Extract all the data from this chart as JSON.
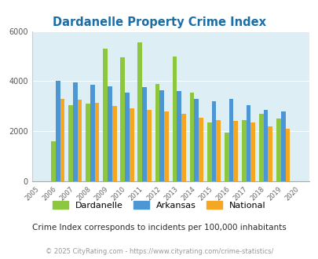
{
  "title": "Dardanelle Property Crime Index",
  "years_all": [
    2005,
    2006,
    2007,
    2008,
    2009,
    2010,
    2011,
    2012,
    2013,
    2014,
    2015,
    2016,
    2017,
    2018,
    2019,
    2020
  ],
  "years_data": [
    2006,
    2007,
    2008,
    2009,
    2010,
    2011,
    2012,
    2013,
    2014,
    2015,
    2016,
    2017,
    2018,
    2019
  ],
  "dardanelle": [
    1600,
    3050,
    3100,
    5300,
    4950,
    5550,
    3900,
    5000,
    3550,
    2350,
    1950,
    2450,
    2700,
    2500
  ],
  "arkansas": [
    4000,
    3950,
    3850,
    3800,
    3550,
    3750,
    3650,
    3600,
    3300,
    3200,
    3300,
    3050,
    2850,
    2800
  ],
  "national": [
    3300,
    3250,
    3150,
    3000,
    2900,
    2850,
    2800,
    2700,
    2550,
    2450,
    2400,
    2350,
    2200,
    2100
  ],
  "dardanelle_color": "#8dc63f",
  "arkansas_color": "#4d96d4",
  "national_color": "#f5a623",
  "bg_color": "#deeef5",
  "ylim": [
    0,
    6000
  ],
  "yticks": [
    0,
    2000,
    4000,
    6000
  ],
  "subtitle": "Crime Index corresponds to incidents per 100,000 inhabitants",
  "footer": "© 2025 CityRating.com - https://www.cityrating.com/crime-statistics/",
  "title_color": "#1a6fa8",
  "subtitle_color": "#2a2a2a",
  "footer_color": "#999999",
  "bar_width": 0.26
}
